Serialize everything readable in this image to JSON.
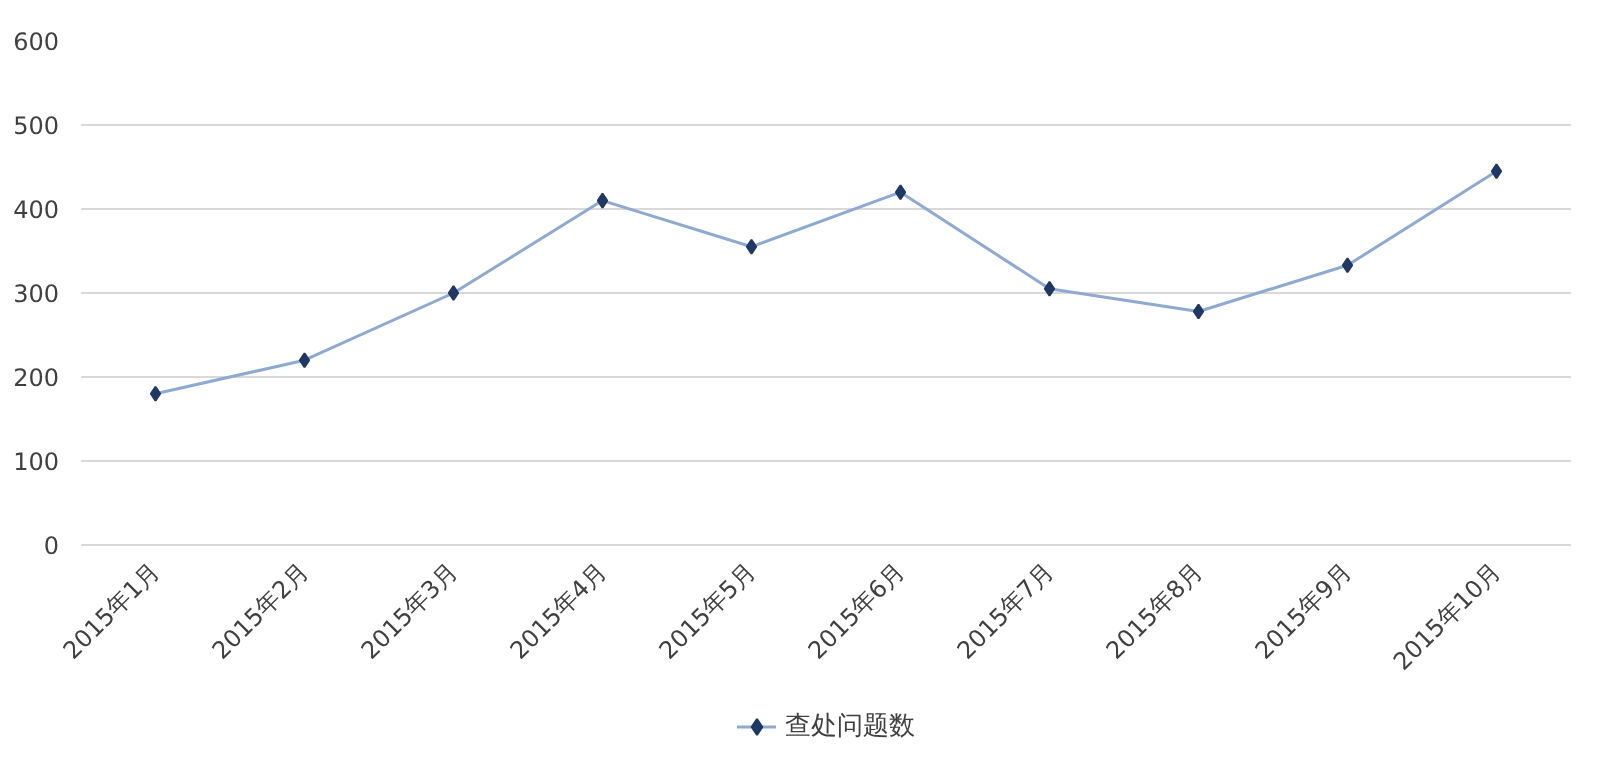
{
  "chart_data": {
    "type": "line",
    "categories": [
      "2015年1月",
      "2015年2月",
      "2015年3月",
      "2015年4月",
      "2015年5月",
      "2015年6月",
      "2015年7月",
      "2015年8月",
      "2015年9月",
      "2015年10月"
    ],
    "series": [
      {
        "name": "查处问题数",
        "color": "#8eaad0",
        "values": [
          180,
          220,
          300,
          410,
          355,
          420,
          305,
          278,
          333,
          445
        ]
      }
    ],
    "ylim": [
      0,
      600
    ],
    "yticks": [
      0,
      100,
      200,
      300,
      400,
      500,
      600
    ],
    "grid": "y",
    "legend": "bottom",
    "marker": "diamond",
    "line_style": "solid"
  }
}
